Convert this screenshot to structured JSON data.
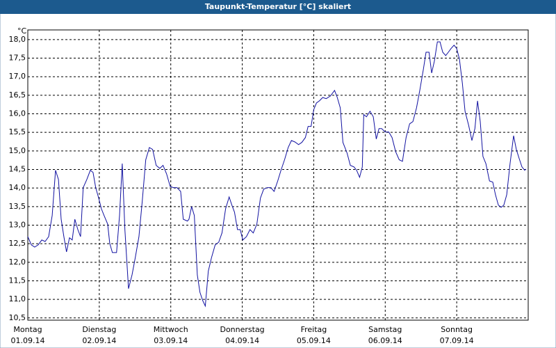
{
  "chart_data": {
    "type": "line",
    "title": "Taupunkt-Temperatur [°C] skaliert",
    "y_unit": "°C",
    "series": [
      {
        "name": "Taupunkt",
        "color": "#1010a0",
        "x": [
          0,
          1.2,
          2.3,
          3.5,
          4.7,
          5.8,
          7.0,
          8.2,
          9.3,
          10.3,
          11.2,
          12.1,
          13.0,
          14.0,
          14.9,
          15.8,
          16.8,
          17.7,
          18.6,
          19.8,
          21.0,
          21.9,
          22.8,
          23.8,
          24.7,
          25.6,
          26.8,
          27.5,
          28.4,
          29.8,
          30.8,
          31.7,
          32.6,
          33.8,
          35.0,
          36.1,
          37.3,
          38.4,
          39.6,
          40.8,
          41.9,
          43.1,
          44.3,
          45.4,
          46.6,
          47.8,
          48.9,
          50.1,
          51.3,
          52.2,
          53.6,
          54.1,
          55.0,
          55.9,
          56.9,
          57.8,
          58.7,
          59.6,
          60.6,
          61.7,
          62.9,
          64.1,
          65.2,
          66.4,
          67.6,
          68.5,
          69.4,
          70.4,
          71.3,
          72.2,
          73.4,
          74.6,
          75.7,
          76.9,
          78.1,
          79.2,
          80.4,
          81.6,
          82.7,
          83.9,
          85.0,
          86.2,
          87.4,
          88.5,
          89.7,
          90.9,
          92.0,
          93.2,
          94.1,
          95.1,
          96.0,
          96.9,
          97.9,
          99.0,
          100.2,
          101.6,
          103.0,
          103.9,
          104.9,
          105.8,
          107.2,
          108.3,
          109.5,
          110.4,
          111.4,
          112.3,
          112.8,
          113.7,
          114.9,
          116.0,
          117.0,
          117.9,
          118.8,
          120.0,
          121.2,
          122.3,
          123.5,
          124.7,
          125.8,
          127.0,
          128.2,
          129.3,
          130.5,
          131.6,
          132.8,
          133.7,
          134.7,
          135.6,
          136.5,
          137.5,
          138.4,
          139.3,
          140.3,
          141.2,
          142.1,
          143.1,
          144.0,
          144.9,
          145.9,
          146.8,
          148.0,
          149.1,
          150.1,
          151.0,
          151.9,
          152.8,
          153.8,
          155.0,
          156.1,
          157.0,
          158.0,
          158.9,
          159.8,
          160.8,
          161.9,
          163.1,
          164.0,
          165.0,
          165.9,
          166.8,
          167.3
        ],
        "values": [
          12.69,
          12.47,
          12.41,
          12.47,
          12.6,
          12.56,
          12.69,
          13.26,
          14.48,
          14.23,
          13.16,
          12.69,
          12.28,
          12.66,
          12.6,
          13.16,
          12.88,
          12.69,
          14.01,
          14.23,
          14.48,
          14.42,
          14.01,
          13.73,
          13.44,
          13.26,
          13.03,
          12.51,
          12.26,
          12.26,
          13.26,
          14.66,
          12.88,
          11.29,
          11.66,
          12.13,
          12.69,
          13.63,
          14.76,
          15.09,
          15.04,
          14.61,
          14.53,
          14.61,
          14.38,
          14.04,
          14.01,
          14.01,
          13.91,
          13.16,
          13.11,
          13.16,
          13.5,
          13.26,
          11.66,
          11.19,
          10.97,
          10.82,
          11.76,
          12.13,
          12.47,
          12.54,
          12.79,
          13.44,
          13.76,
          13.54,
          13.35,
          12.88,
          12.88,
          12.6,
          12.69,
          12.88,
          12.79,
          13.03,
          13.73,
          13.97,
          14.01,
          14.01,
          13.91,
          14.19,
          14.48,
          14.76,
          15.09,
          15.28,
          15.24,
          15.17,
          15.23,
          15.36,
          15.66,
          15.66,
          16.11,
          16.29,
          16.35,
          16.44,
          16.41,
          16.48,
          16.63,
          16.44,
          16.16,
          15.23,
          14.94,
          14.61,
          14.57,
          14.48,
          14.29,
          14.57,
          15.98,
          15.92,
          16.07,
          15.92,
          15.32,
          15.6,
          15.6,
          15.51,
          15.51,
          15.36,
          14.98,
          14.76,
          14.72,
          15.36,
          15.73,
          15.79,
          16.16,
          16.63,
          17.19,
          17.66,
          17.66,
          17.1,
          17.42,
          17.94,
          17.94,
          17.66,
          17.57,
          17.66,
          17.76,
          17.85,
          17.76,
          17.48,
          16.82,
          16.07,
          15.69,
          15.28,
          15.6,
          16.35,
          15.79,
          14.85,
          14.66,
          14.19,
          14.16,
          13.82,
          13.54,
          13.48,
          13.54,
          13.82,
          14.66,
          15.41,
          15.04,
          14.79,
          14.57,
          14.48,
          14.51
        ]
      }
    ],
    "xlim": [
      0,
      168
    ],
    "ylim": [
      10.44,
      18.26
    ],
    "xticks": [
      {
        "value": 0,
        "label": "Montag"
      },
      {
        "value": 24,
        "label": "Dienstag"
      },
      {
        "value": 48,
        "label": "Mittwoch"
      },
      {
        "value": 72,
        "label": "Donnerstag"
      },
      {
        "value": 96,
        "label": "Freitag"
      },
      {
        "value": 120,
        "label": "Samstag"
      },
      {
        "value": 144,
        "label": "Sonntag"
      }
    ],
    "xtick_dates": [
      "01.09.14",
      "02.09.14",
      "03.09.14",
      "04.09.14",
      "05.09.14",
      "06.09.14",
      "07.09.14"
    ],
    "yticks": [
      {
        "value": 10.5,
        "label": "10,5"
      },
      {
        "value": 11,
        "label": "11,0"
      },
      {
        "value": 11.5,
        "label": "11,5"
      },
      {
        "value": 12,
        "label": "12,0"
      },
      {
        "value": 12.5,
        "label": "12,5"
      },
      {
        "value": 13,
        "label": "13,0"
      },
      {
        "value": 13.5,
        "label": "13,5"
      },
      {
        "value": 14,
        "label": "14,0"
      },
      {
        "value": 14.5,
        "label": "14,5"
      },
      {
        "value": 15,
        "label": "15,0"
      },
      {
        "value": 15.5,
        "label": "15,5"
      },
      {
        "value": 16,
        "label": "16,0"
      },
      {
        "value": 16.5,
        "label": "16,5"
      },
      {
        "value": 17,
        "label": "17,0"
      },
      {
        "value": 17.5,
        "label": "17,5"
      },
      {
        "value": 18,
        "label": "18,0"
      }
    ],
    "grid": true
  }
}
